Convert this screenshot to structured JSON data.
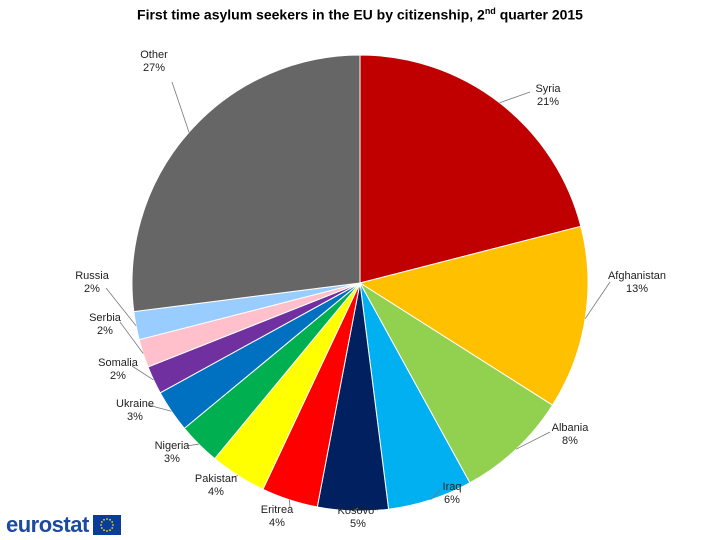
{
  "chart_data": {
    "type": "pie",
    "title_main": "First time asylum seekers  in the EU by citizenship, 2",
    "title_sup": "nd",
    "title_end": " quarter 2015",
    "slices": [
      {
        "label": "Syria",
        "value": 21,
        "value_label": "21%",
        "color": "#c00000"
      },
      {
        "label": "Afghanistan",
        "value": 13,
        "value_label": "13%",
        "color": "#ffc000"
      },
      {
        "label": "Albania",
        "value": 8,
        "value_label": "8%",
        "color": "#92d050"
      },
      {
        "label": "Iraq",
        "value": 6,
        "value_label": "6%",
        "color": "#00b0f0"
      },
      {
        "label": "Kosovo*",
        "value": 5,
        "value_label": "5%",
        "color": "#002060"
      },
      {
        "label": "Eritrea",
        "value": 4,
        "value_label": "4%",
        "color": "#ff0000"
      },
      {
        "label": "Pakistan",
        "value": 4,
        "value_label": "4%",
        "color": "#ffff00"
      },
      {
        "label": "Nigeria",
        "value": 3,
        "value_label": "3%",
        "color": "#00b050"
      },
      {
        "label": "Ukraine",
        "value": 3,
        "value_label": "3%",
        "color": "#0070c0"
      },
      {
        "label": "Somalia",
        "value": 2,
        "value_label": "2%",
        "color": "#7030a0"
      },
      {
        "label": "Serbia",
        "value": 2,
        "value_label": "2%",
        "color": "#ffc0cb"
      },
      {
        "label": "Russia",
        "value": 2,
        "value_label": "2%",
        "color": "#99ccff"
      },
      {
        "label": "Other",
        "value": 27,
        "value_label": "27%",
        "color": "#666666"
      }
    ],
    "legend": "none"
  },
  "logo": {
    "text": "eurostat",
    "flag_color": "#0a3d9a",
    "star_color": "#ffd700"
  }
}
